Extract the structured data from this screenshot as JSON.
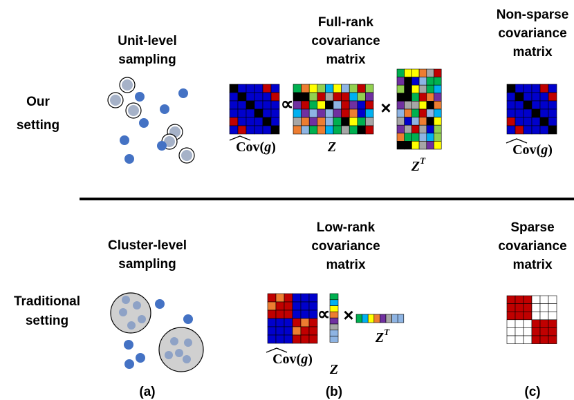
{
  "rows": [
    {
      "label": [
        "Our",
        "setting"
      ],
      "sampling": [
        "Unit-level",
        "sampling"
      ],
      "middle": [
        "Full-rank",
        "covariance",
        "matrix"
      ],
      "right": [
        "Non-sparse",
        "covariance",
        "matrix"
      ]
    },
    {
      "label": [
        "Traditional",
        "setting"
      ],
      "sampling": [
        "Cluster-level",
        "sampling"
      ],
      "middle": [
        "Low-rank",
        "covariance",
        "matrix"
      ],
      "right": [
        "Sparse",
        "covariance",
        "matrix"
      ]
    }
  ],
  "symbols": {
    "proportional": "∝",
    "times": "×"
  },
  "matrix_labels": {
    "cov_name": "Cov",
    "cov_open": "(",
    "cov_arg": "g",
    "cov_close": ")",
    "z": "Z",
    "transpose": "T"
  },
  "panels": [
    "(a)",
    "(b)",
    "(c)"
  ]
}
